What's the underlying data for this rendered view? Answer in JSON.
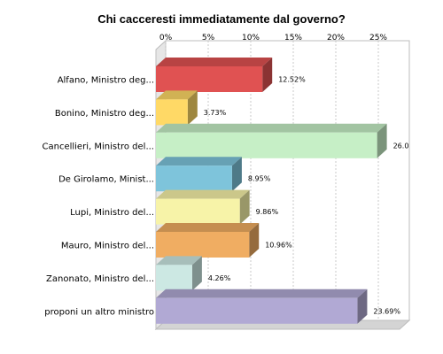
{
  "chart_data": {
    "type": "bar",
    "orientation": "horizontal",
    "style": "3d",
    "title": "Chi cacceresti immediatamente dal governo?",
    "x_ticks": [
      "0%",
      "5%",
      "10%",
      "15%",
      "20%",
      "25%"
    ],
    "xlim": [
      0,
      27
    ],
    "grid": true,
    "categories": [
      "Alfano, Ministro deg...",
      "Bonino, Ministro deg...",
      "Cancellieri, Ministro del...",
      "De Girolamo, Minist...",
      "Lupi, Ministro del...",
      "Mauro, Ministro del...",
      "Zanonato, Ministro del...",
      "proponi un altro ministro"
    ],
    "values": [
      12.52,
      3.73,
      26.0,
      8.95,
      9.86,
      10.96,
      4.26,
      23.69
    ],
    "data_labels": [
      "12.52%",
      "3.73%",
      "26.0",
      "8.95%",
      "9.86%",
      "10.96%",
      "4.26%",
      "23.69%"
    ],
    "colors": [
      "#e05252",
      "#ffd966",
      "#c6efc6",
      "#7ec4db",
      "#f7f3a8",
      "#f0ad62",
      "#cce8e3",
      "#b1a9d4"
    ]
  }
}
